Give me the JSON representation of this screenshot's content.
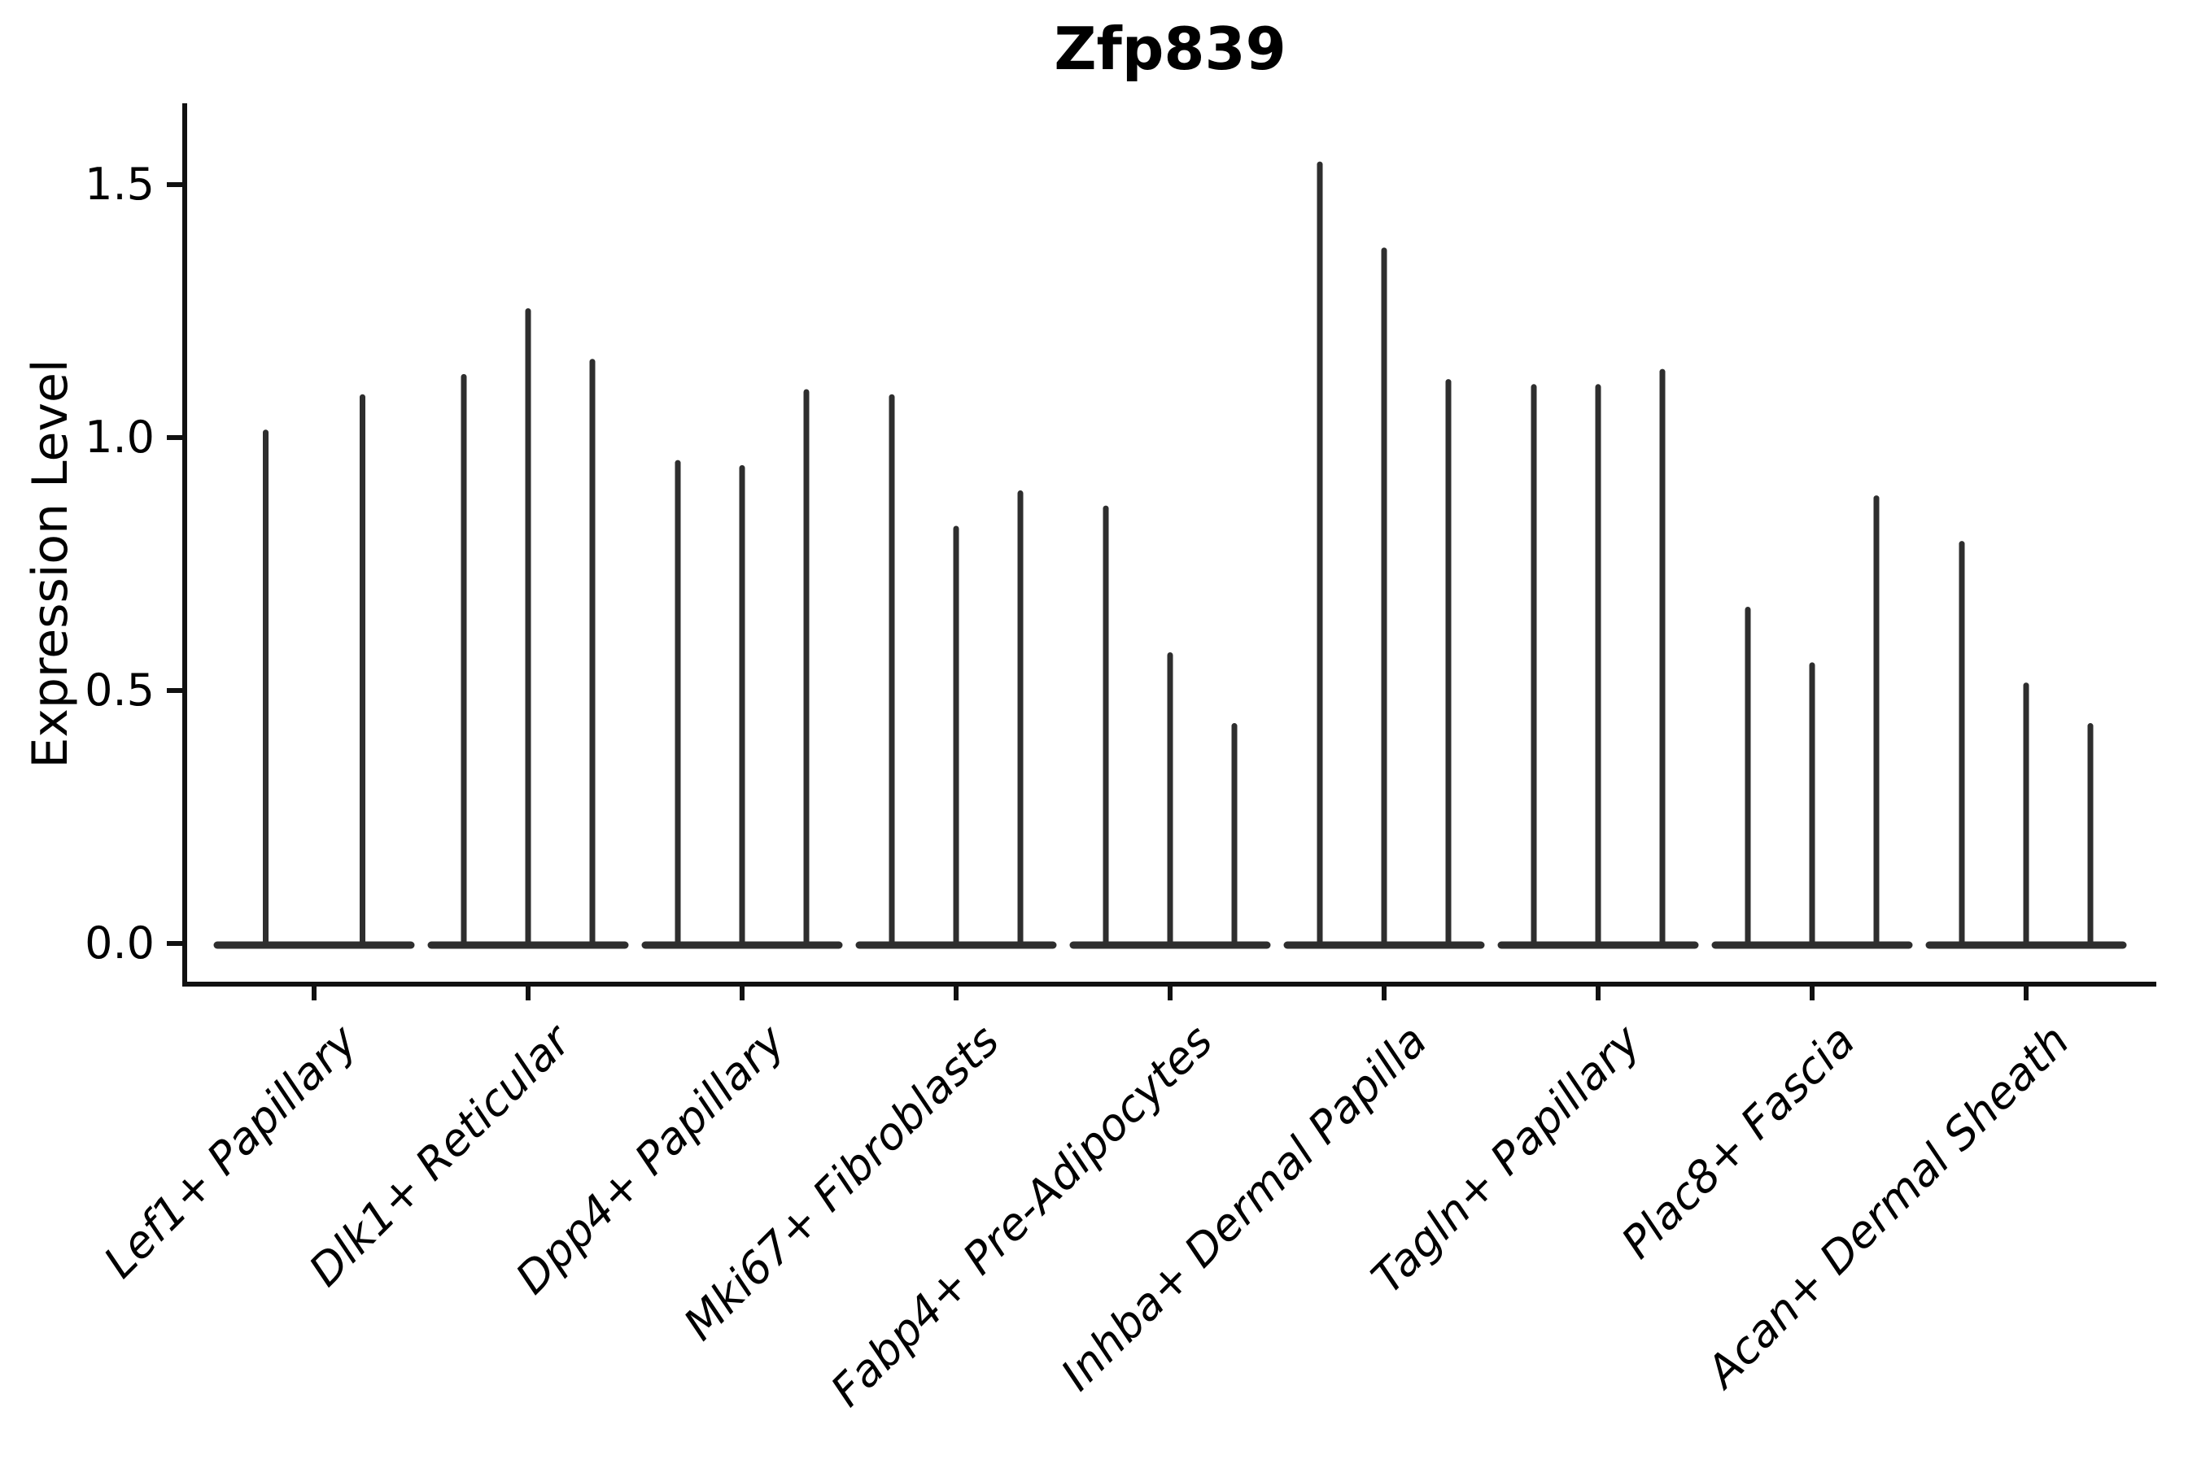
{
  "figure": {
    "title": "Zfp839",
    "ylabel": "Expression Level"
  },
  "chart_data": {
    "type": "violin",
    "title": "Zfp839",
    "xlabel": "",
    "ylabel": "Expression Level",
    "ylim": [
      -0.05,
      1.66
    ],
    "grid": false,
    "legend_position": "none",
    "ytick_labels": [
      "0.0",
      "0.5",
      "1.0",
      "1.5"
    ],
    "ytick_values": [
      0.0,
      0.5,
      1.0,
      1.5
    ],
    "categories": [
      "Lef1+ Papillary",
      "Dlk1+ Reticular",
      "Dpp4+ Papillary",
      "Mki67+ Fibroblasts",
      "Fabp4+ Pre-Adipocytes",
      "Inhba+ Dermal Papilla",
      "Tagln+ Papillary",
      "Plac8+ Fascia",
      "Acan+ Dermal Sheath"
    ],
    "violin_max_expression_per_category": [
      [
        1.01,
        1.08
      ],
      [
        1.12,
        1.25,
        1.15
      ],
      [
        0.95,
        0.94,
        1.09
      ],
      [
        1.08,
        0.82,
        0.89
      ],
      [
        0.86,
        0.57,
        0.43
      ],
      [
        1.54,
        1.37,
        1.11
      ],
      [
        1.1,
        1.1,
        1.13
      ],
      [
        0.66,
        0.55,
        0.88
      ],
      [
        0.79,
        0.51,
        0.43
      ]
    ],
    "violin_shape": "thin vertical spike with flat wide base at expression 0",
    "colors": {
      "violin": "#2e2e2e",
      "axis": "#111111",
      "text": "#000000",
      "background": "#ffffff"
    }
  }
}
